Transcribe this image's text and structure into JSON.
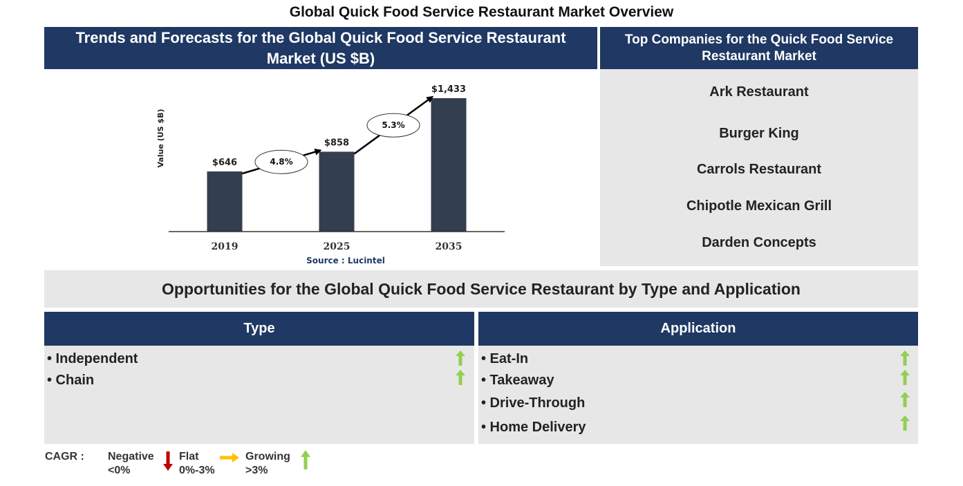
{
  "title": "Global Quick Food Service Restaurant Market Overview",
  "trend_panel": {
    "heading": "Trends and Forecasts for the Global Quick Food Service Restaurant Market (US $B)",
    "source": "Source : Lucintel"
  },
  "chart_data": {
    "type": "bar",
    "categories": [
      "2019",
      "2025",
      "2035"
    ],
    "values": [
      646,
      858,
      1433
    ],
    "value_labels": [
      "$646",
      "$858",
      "$1,433"
    ],
    "ylabel": "Value (US $B)",
    "ylim": [
      0,
      1500
    ],
    "bar_color": "#333f50",
    "grid": false,
    "cagr": [
      {
        "from": "2019",
        "to": "2025",
        "label": "4.8%"
      },
      {
        "from": "2025",
        "to": "2035",
        "label": "5.3%"
      }
    ]
  },
  "top_companies": {
    "heading": "Top Companies for the Quick Food Service Restaurant Market",
    "items": [
      "Ark Restaurant",
      "Burger King",
      "Carrols Restaurant",
      "Chipotle Mexican Grill",
      "Darden Concepts"
    ]
  },
  "opportunities": {
    "heading": "Opportunities for the Global Quick Food Service Restaurant by Type and Application",
    "type": {
      "heading": "Type",
      "items": [
        {
          "label": "• Independent",
          "trend": "growing"
        },
        {
          "label": "• Chain",
          "trend": "growing"
        }
      ]
    },
    "application": {
      "heading": "Application",
      "items": [
        {
          "label": "• Eat-In",
          "trend": "growing"
        },
        {
          "label": "• Takeaway",
          "trend": "growing"
        },
        {
          "label": "• Drive-Through",
          "trend": "growing"
        },
        {
          "label": "• Home Delivery",
          "trend": "growing"
        }
      ]
    }
  },
  "legend": {
    "label": "CAGR :",
    "negative": {
      "name": "Negative",
      "range": "<0%",
      "icon": "red-down-arrow-icon",
      "color": "#c00000"
    },
    "flat": {
      "name": "Flat",
      "range": "0%-3%",
      "icon": "yellow-right-arrow-icon",
      "color": "#ffc000"
    },
    "growing": {
      "name": "Growing",
      "range": ">3%",
      "icon": "green-up-arrow-icon",
      "color": "#92d050"
    }
  },
  "colors": {
    "navy": "#1f3864",
    "panel": "#e7e7e7",
    "up_arrow": "#92d050"
  }
}
